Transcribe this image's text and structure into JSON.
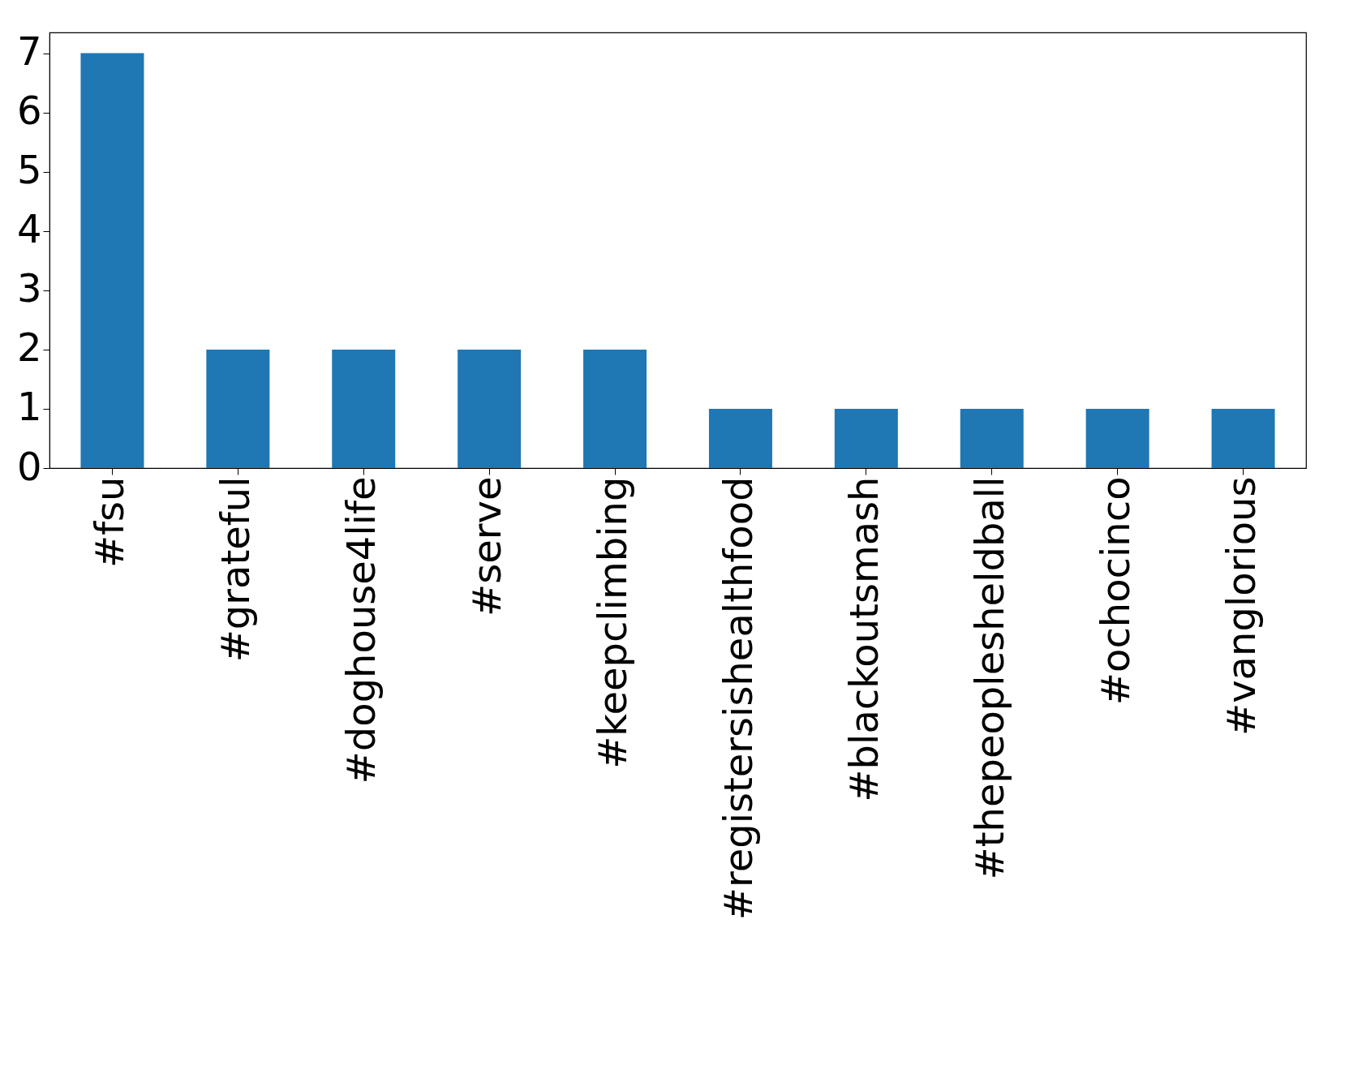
{
  "chart_data": {
    "type": "bar",
    "categories": [
      "#fsu",
      "#grateful",
      "#doghouse4life",
      "#serve",
      "#keepclimbing",
      "#registersishealthfood",
      "#blackoutsmash",
      "#thepeoplesheldball",
      "#ochocinco",
      "#vanglorious"
    ],
    "values": [
      7,
      2,
      2,
      2,
      2,
      1,
      1,
      1,
      1,
      1
    ],
    "color": "#1f77b4",
    "ylim": [
      0,
      7.35
    ],
    "yticks": [
      0,
      1,
      2,
      3,
      4,
      5,
      6,
      7
    ],
    "grid": false
  }
}
